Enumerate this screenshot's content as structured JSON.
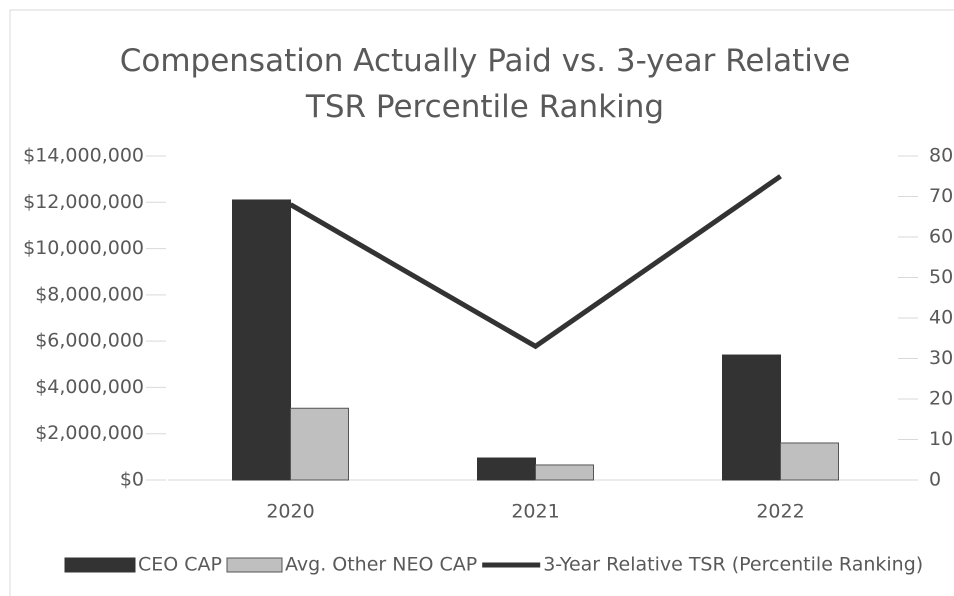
{
  "chart_data": {
    "type": "bar-line",
    "title": "Compensation Actually Paid vs. 3-year Relative TSR Percentile Ranking",
    "categories": [
      "2020",
      "2021",
      "2022"
    ],
    "series": [
      {
        "name": "CEO CAP",
        "type": "bar",
        "color": "#333333",
        "values": [
          12100000,
          950000,
          5400000
        ]
      },
      {
        "name": "Avg. Other NEO CAP",
        "type": "bar",
        "color": "#bfbfbf",
        "values": [
          3100000,
          650000,
          1600000
        ]
      },
      {
        "name": "3-Year Relative TSR (Percentile Ranking)",
        "type": "line",
        "axis": "y2",
        "color": "#333333",
        "values": [
          68,
          33,
          75
        ]
      }
    ],
    "ylim": [
      0,
      14000000
    ],
    "yticks": [
      {
        "value": 0,
        "label": "$0"
      },
      {
        "value": 2000000,
        "label": "$2,000,000"
      },
      {
        "value": 4000000,
        "label": "$4,000,000"
      },
      {
        "value": 6000000,
        "label": "$6,000,000"
      },
      {
        "value": 8000000,
        "label": "$8,000,000"
      },
      {
        "value": 10000000,
        "label": "$10,000,000"
      },
      {
        "value": 12000000,
        "label": "$12,000,000"
      },
      {
        "value": 14000000,
        "label": "$14,000,000"
      }
    ],
    "y2lim": [
      0,
      80
    ],
    "y2ticks": [
      0,
      10,
      20,
      30,
      40,
      50,
      60,
      70,
      80
    ],
    "grid": false,
    "legend": "bottom"
  }
}
